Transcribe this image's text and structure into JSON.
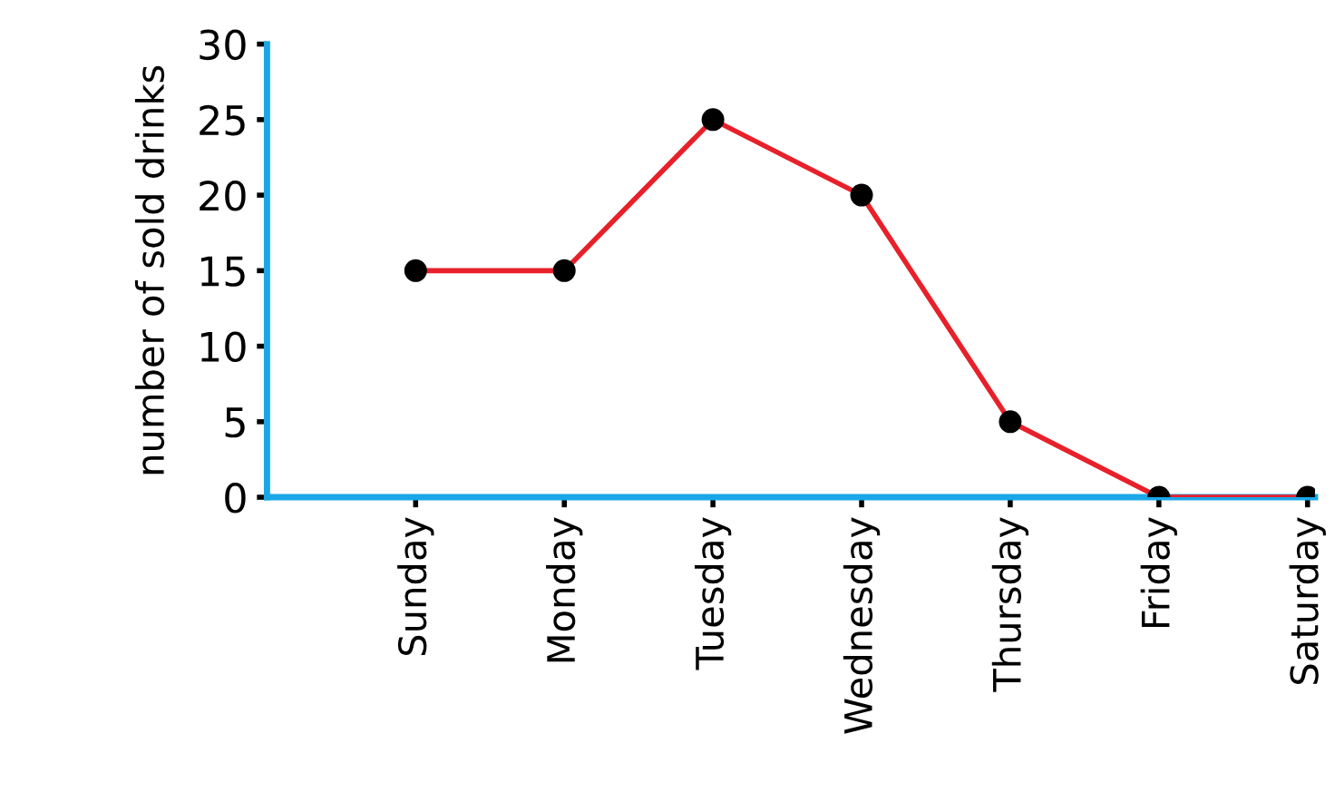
{
  "chart_data": {
    "type": "line",
    "ylabel": "number of sold drinks",
    "categories": [
      "Sunday",
      "Monday",
      "Tuesday",
      "Wednesday",
      "Thursday",
      "Friday",
      "Saturday"
    ],
    "series": [
      {
        "color": "#e8202a",
        "values": [
          15,
          15,
          25,
          20,
          5,
          0,
          0
        ]
      }
    ],
    "ylim": [
      0,
      30
    ],
    "yticks": [
      0,
      5,
      10,
      15,
      20,
      25,
      30
    ],
    "grid": false,
    "marker": "circle",
    "line_style": "solid"
  }
}
